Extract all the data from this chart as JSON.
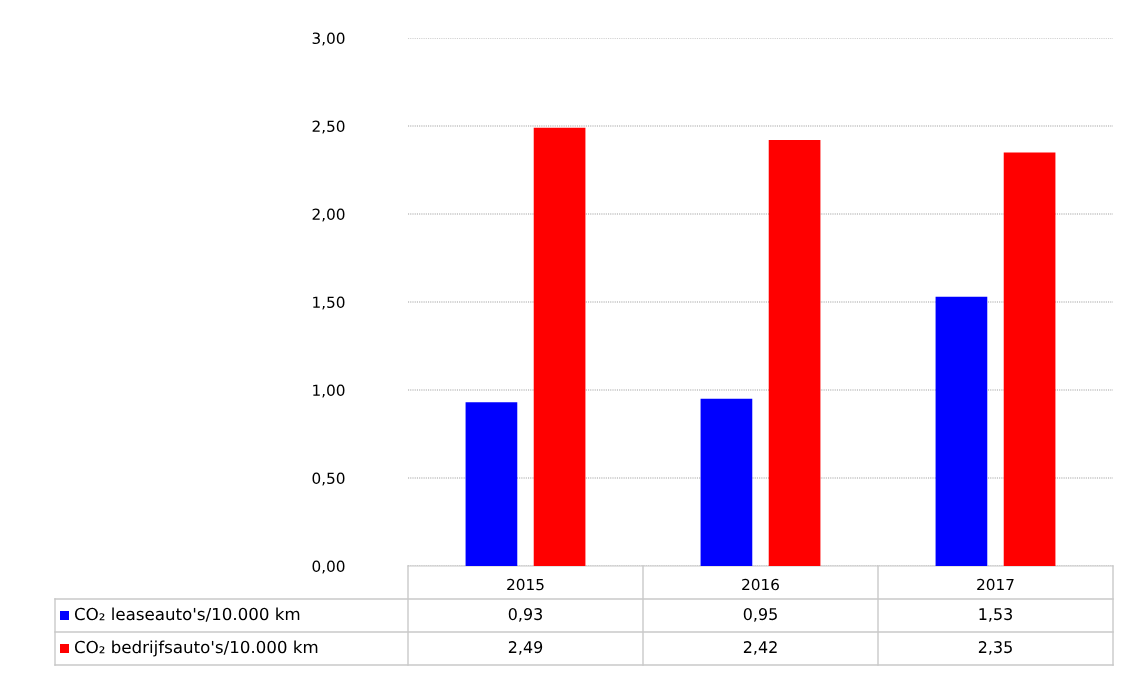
{
  "chart_data": {
    "type": "bar",
    "categories": [
      "2015",
      "2016",
      "2017"
    ],
    "series": [
      {
        "name": "CO₂ leaseauto's/10.000 km",
        "color": "#0000ff",
        "values": [
          0.93,
          0.95,
          1.53
        ],
        "value_labels": [
          "0,93",
          "0,95",
          "1,53"
        ]
      },
      {
        "name": "CO₂ bedrijfsauto's/10.000 km",
        "color": "#ff0000",
        "values": [
          2.49,
          2.42,
          2.35
        ],
        "value_labels": [
          "2,49",
          "2,42",
          "2,35"
        ]
      }
    ],
    "ylim": [
      0,
      3
    ],
    "yticks": [
      {
        "value": 0,
        "label": "0,00"
      },
      {
        "value": 0.5,
        "label": "0,50"
      },
      {
        "value": 1,
        "label": "1,00"
      },
      {
        "value": 1.5,
        "label": "1,50"
      },
      {
        "value": 2,
        "label": "2,00"
      },
      {
        "value": 2.5,
        "label": "2,50"
      },
      {
        "value": 3,
        "label": "3,00"
      }
    ],
    "grid": "y",
    "legend": "bottom left"
  }
}
